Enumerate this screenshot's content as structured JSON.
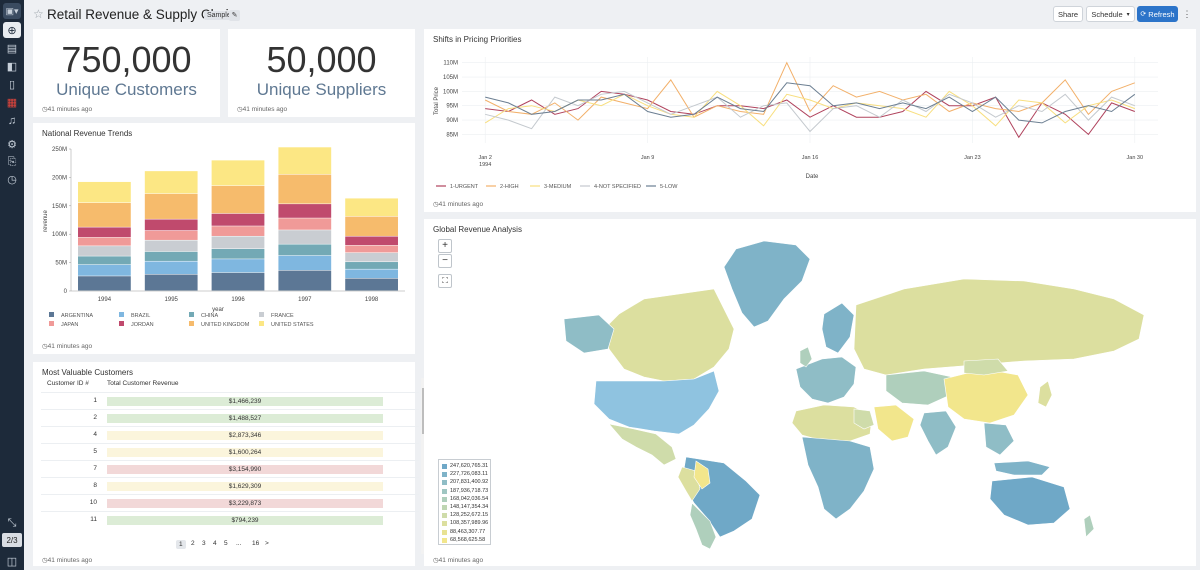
{
  "header": {
    "title": "Retail Revenue & Supply Chain",
    "badge": "Sample",
    "share": "Share",
    "schedule": "Schedule",
    "refresh": "Refresh"
  },
  "rail": {
    "pager": "2/3"
  },
  "kpis": [
    {
      "value": "750,000",
      "label": "Unique Customers",
      "updated": "41 minutes ago"
    },
    {
      "value": "50,000",
      "label": "Unique Suppliers",
      "updated": "41 minutes ago"
    }
  ],
  "revenue_trends": {
    "title": "National Revenue Trends",
    "updated": "41 minutes ago"
  },
  "pricing": {
    "title": "Shifts in Pricing Priorities",
    "updated": "41 minutes ago"
  },
  "customers": {
    "title": "Most Valuable Customers",
    "updated": "41 minutes ago",
    "columns": [
      "Customer ID #",
      "Total Customer Revenue"
    ],
    "rows": [
      {
        "id": "1",
        "revenue": "$1,466,239"
      },
      {
        "id": "2",
        "revenue": "$1,488,527"
      },
      {
        "id": "4",
        "revenue": "$2,873,346"
      },
      {
        "id": "5",
        "revenue": "$1,600,264"
      },
      {
        "id": "7",
        "revenue": "$3,154,990"
      },
      {
        "id": "8",
        "revenue": "$1,629,309"
      },
      {
        "id": "10",
        "revenue": "$3,229,873"
      },
      {
        "id": "11",
        "revenue": "$794,239"
      }
    ],
    "pages": [
      "1",
      "2",
      "3",
      "4",
      "5",
      "...",
      "16",
      ">"
    ]
  },
  "map": {
    "title": "Global Revenue Analysis",
    "updated": "41 minutes ago",
    "zoom_in": "+",
    "zoom_out": "−",
    "legend": [
      "247,620,765.31",
      "227,726,083.11",
      "207,831,400.92",
      "187,936,718.73",
      "168,042,036.54",
      "148,147,354.34",
      "128,252,672.15",
      "108,357,989.96",
      "88,463,307.77",
      "68,568,625.58"
    ],
    "legend_colors": [
      "#6fa8c7",
      "#7fb3c8",
      "#8fbdc6",
      "#9fc6c2",
      "#afcfbc",
      "#bfd6b3",
      "#cfdcaa",
      "#dcdf9f",
      "#e8e293",
      "#f2e68c"
    ]
  },
  "chart_data": [
    {
      "type": "bar",
      "title": "National Revenue Trends",
      "xlabel": "year",
      "ylabel": "revenue",
      "ylim": [
        0,
        250000000
      ],
      "yticks": [
        "0",
        "50M",
        "100M",
        "150M",
        "200M",
        "250M"
      ],
      "categories": [
        "1994",
        "1995",
        "1996",
        "1997",
        "1998"
      ],
      "series": [
        {
          "name": "ARGENTINA",
          "color": "#5c7795",
          "values": [
            26000000,
            29000000,
            32000000,
            36000000,
            22000000
          ]
        },
        {
          "name": "BRAZIL",
          "color": "#7fb7e0",
          "values": [
            20000000,
            23000000,
            24000000,
            26000000,
            16000000
          ]
        },
        {
          "name": "CHINA",
          "color": "#73a9b5",
          "values": [
            15000000,
            17000000,
            18000000,
            20000000,
            13000000
          ]
        },
        {
          "name": "FRANCE",
          "color": "#c9cdd2",
          "values": [
            18000000,
            20000000,
            22000000,
            25000000,
            16000000
          ]
        },
        {
          "name": "JAPAN",
          "color": "#f09a98",
          "values": [
            15000000,
            17000000,
            18000000,
            21000000,
            13000000
          ]
        },
        {
          "name": "JORDAN",
          "color": "#c04a6d",
          "values": [
            18000000,
            20000000,
            22000000,
            25000000,
            16000000
          ]
        },
        {
          "name": "UNITED KINGDOM",
          "color": "#f6bb6c",
          "values": [
            43000000,
            45000000,
            49000000,
            52000000,
            35000000
          ]
        },
        {
          "name": "UNITED STATES",
          "color": "#fce784",
          "values": [
            37000000,
            40000000,
            45000000,
            48000000,
            32000000
          ]
        }
      ]
    },
    {
      "type": "line",
      "title": "Shifts in Pricing Priorities",
      "xlabel": "Date",
      "ylabel": "Total Price",
      "ylim": [
        82000000,
        112000000
      ],
      "yticks": [
        "85M",
        "90M",
        "95M",
        "100M",
        "105M",
        "110M"
      ],
      "xticks": [
        "Jan 2",
        "Jan 9",
        "Jan 16",
        "Jan 23",
        "Jan 30"
      ],
      "xtick_sub": "1994",
      "x": [
        2,
        3,
        4,
        5,
        6,
        7,
        8,
        9,
        10,
        11,
        12,
        13,
        14,
        15,
        16,
        17,
        18,
        19,
        20,
        21,
        22,
        23,
        24,
        25,
        26,
        27,
        28,
        29,
        30
      ],
      "series": [
        {
          "name": "1-URGENT",
          "color": "#b0435d",
          "values": [
            94,
            93,
            97,
            92,
            94,
            100,
            99,
            97,
            93,
            92,
            95,
            95,
            94,
            97,
            91,
            95,
            91,
            91,
            93,
            100,
            95,
            95,
            98,
            84,
            96,
            92,
            85,
            96,
            93
          ]
        },
        {
          "name": "2-HIGH",
          "color": "#f2b06a",
          "values": [
            97,
            93,
            92,
            96,
            90,
            98,
            96,
            94,
            104,
            91,
            95,
            93,
            92,
            110,
            93,
            102,
            98,
            100,
            97,
            99,
            93,
            96,
            94,
            93,
            96,
            104,
            92,
            100,
            103
          ]
        },
        {
          "name": "3-MEDIUM",
          "color": "#f8df7f",
          "values": [
            89,
            94,
            95,
            93,
            97,
            95,
            99,
            95,
            92,
            91,
            100,
            95,
            88,
            99,
            97,
            94,
            96,
            95,
            94,
            91,
            100,
            95,
            88,
            97,
            96,
            89,
            95,
            97,
            94
          ]
        },
        {
          "name": "4-NOT SPECIFIED",
          "color": "#c4c9ce",
          "values": [
            92,
            90,
            87,
            98,
            95,
            99,
            100,
            96,
            92,
            95,
            98,
            91,
            95,
            96,
            86,
            94,
            95,
            91,
            97,
            93,
            99,
            96,
            91,
            95,
            93,
            99,
            90,
            98,
            95
          ]
        },
        {
          "name": "5-LOW",
          "color": "#6c7f92",
          "values": [
            98,
            96,
            92,
            93,
            97,
            97,
            99,
            93,
            91,
            92,
            98,
            94,
            93,
            103,
            102,
            95,
            96,
            94,
            96,
            94,
            98,
            93,
            98,
            90,
            89,
            93,
            95,
            93,
            99
          ]
        }
      ]
    }
  ]
}
